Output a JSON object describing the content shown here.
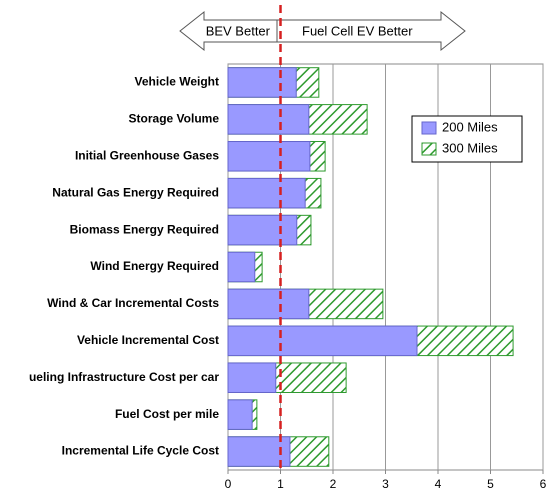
{
  "chart_data": {
    "type": "hbar_overlay",
    "categories": [
      "Vehicle Weight",
      "Storage Volume",
      "Initial Greenhouse Gases",
      "Natural Gas Energy Required",
      "Biomass Energy Required",
      "Wind Energy Required",
      "Wind & Car Incremental Costs",
      "Vehicle Incremental Cost",
      "ueling Infrastructure Cost per car",
      "Fuel Cost per mile",
      "Incremental Life Cycle Cost"
    ],
    "series": [
      {
        "name": "300 Miles",
        "color": "#2e9a2e",
        "pattern": "hatch",
        "values": [
          1.73,
          2.65,
          1.85,
          1.77,
          1.58,
          0.65,
          2.95,
          5.43,
          2.25,
          0.55,
          1.92
        ]
      },
      {
        "name": "200 Miles",
        "color": "#9999ff",
        "pattern": "solid",
        "values": [
          1.3,
          1.54,
          1.56,
          1.47,
          1.31,
          0.51,
          1.54,
          3.6,
          0.91,
          0.46,
          1.18
        ]
      }
    ],
    "xlim": [
      0,
      6
    ],
    "xticks": [
      0,
      1,
      2,
      3,
      4,
      5,
      6
    ],
    "grid": true,
    "reference_line": {
      "value": 1,
      "color": "#d62020",
      "left_label": "BEV Better",
      "right_label": "Fuel Cell EV Better"
    },
    "legend": "upper right"
  }
}
